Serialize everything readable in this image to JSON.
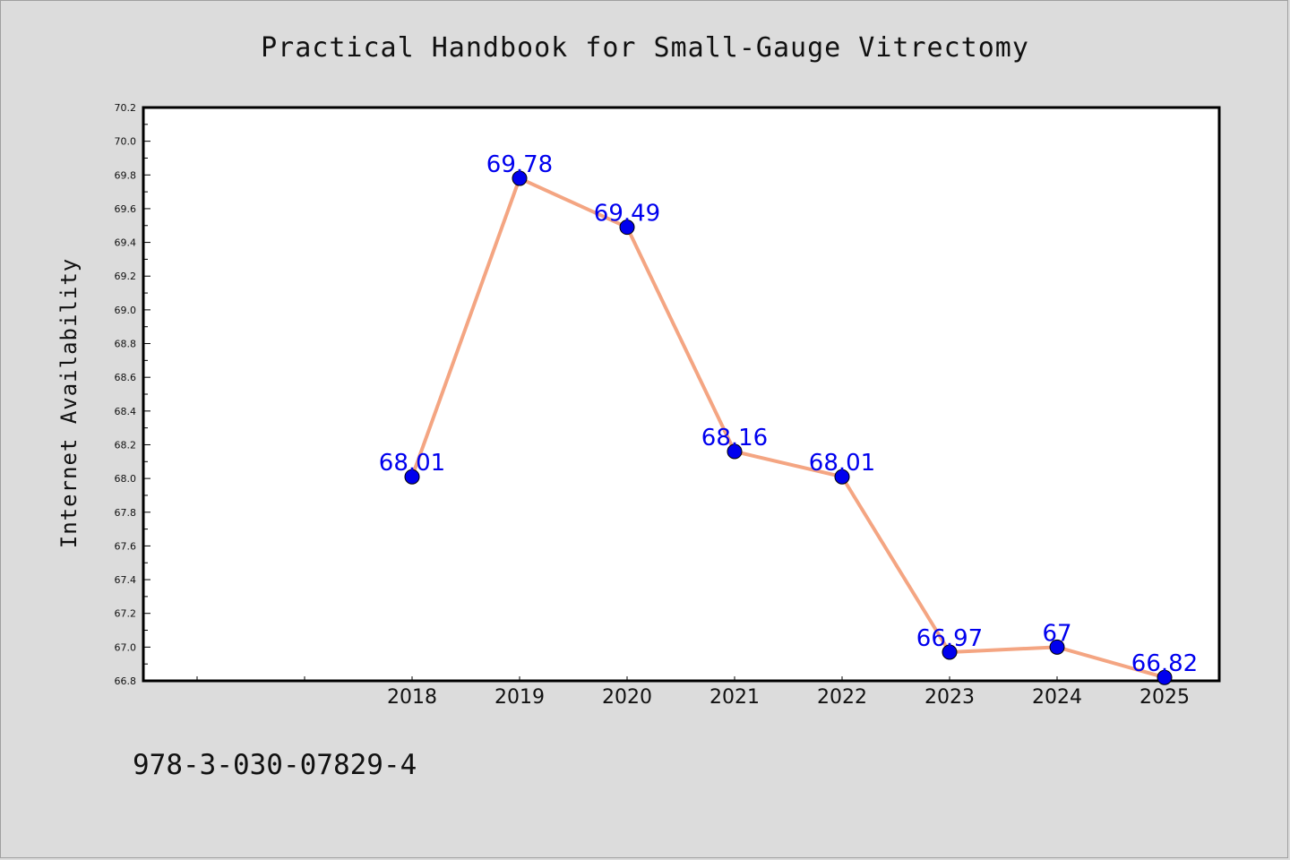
{
  "chart_data": {
    "type": "line",
    "title": "Practical Handbook for Small-Gauge Vitrectomy",
    "xlabel": "",
    "ylabel": "Internet Availability",
    "categories": [
      "2018",
      "2019",
      "2020",
      "2021",
      "2022",
      "2023",
      "2024",
      "2025"
    ],
    "series": [
      {
        "values": [
          68.01,
          69.78,
          69.49,
          68.16,
          68.01,
          66.97,
          67.0,
          66.82
        ],
        "labels": [
          "68.01",
          "69.78",
          "69.49",
          "68.16",
          "68.01",
          "66.97",
          "67",
          "66.82"
        ]
      }
    ],
    "ylim": [
      66.8,
      70.2
    ],
    "yticks": [
      "66.8",
      "67.0",
      "67.2",
      "67.4",
      "67.6",
      "67.8",
      "68.0",
      "68.2",
      "68.4",
      "68.6",
      "68.8",
      "69.0",
      "69.2",
      "69.4",
      "69.6",
      "69.8",
      "70.0",
      "70.2"
    ],
    "grid": false,
    "legend": "none",
    "colors": {
      "line": "#f4a582",
      "marker": "#0000ee",
      "data_label": "#0000ee",
      "plot_background": "#ffffff",
      "page_background": "#dcdcdc"
    }
  },
  "footer": {
    "isbn": "978-3-030-07829-4"
  }
}
